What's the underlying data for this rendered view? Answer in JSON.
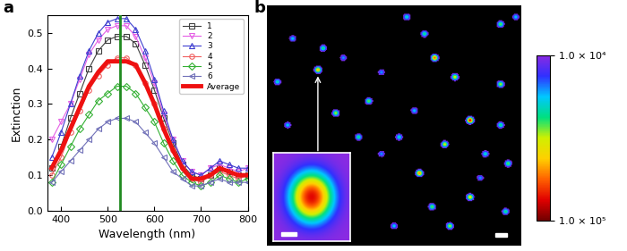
{
  "chart_data": [
    {
      "type": "line",
      "panel_label": "a",
      "x_label": "Wavelength (nm)",
      "y_label": "Extinction",
      "x": [
        380,
        400,
        420,
        440,
        460,
        480,
        500,
        520,
        540,
        560,
        580,
        600,
        620,
        640,
        660,
        680,
        700,
        720,
        740,
        760,
        780,
        800
      ],
      "series": [
        {
          "name": "1",
          "color": "#404040",
          "marker": "square",
          "values": [
            0.12,
            0.18,
            0.26,
            0.33,
            0.4,
            0.45,
            0.48,
            0.49,
            0.49,
            0.47,
            0.41,
            0.34,
            0.26,
            0.19,
            0.13,
            0.1,
            0.09,
            0.1,
            0.12,
            0.11,
            0.1,
            0.1
          ]
        },
        {
          "name": "2",
          "color": "#e55fe5",
          "marker": "triangle_down",
          "values": [
            0.2,
            0.25,
            0.3,
            0.37,
            0.44,
            0.48,
            0.51,
            0.52,
            0.52,
            0.49,
            0.43,
            0.36,
            0.27,
            0.2,
            0.14,
            0.11,
            0.1,
            0.12,
            0.13,
            0.12,
            0.11,
            0.12
          ]
        },
        {
          "name": "3",
          "color": "#3f3fd0",
          "marker": "triangle_up",
          "values": [
            0.15,
            0.22,
            0.3,
            0.38,
            0.45,
            0.5,
            0.53,
            0.54,
            0.54,
            0.51,
            0.45,
            0.37,
            0.28,
            0.2,
            0.14,
            0.11,
            0.1,
            0.12,
            0.14,
            0.13,
            0.12,
            0.12
          ]
        },
        {
          "name": "4",
          "color": "#f06060",
          "marker": "circle",
          "values": [
            0.1,
            0.15,
            0.22,
            0.28,
            0.34,
            0.38,
            0.41,
            0.43,
            0.43,
            0.41,
            0.36,
            0.3,
            0.23,
            0.17,
            0.12,
            0.09,
            0.08,
            0.1,
            0.11,
            0.1,
            0.09,
            0.1
          ]
        },
        {
          "name": "5",
          "color": "#33b033",
          "marker": "diamond",
          "values": [
            0.08,
            0.13,
            0.18,
            0.23,
            0.27,
            0.31,
            0.33,
            0.35,
            0.35,
            0.33,
            0.29,
            0.25,
            0.19,
            0.14,
            0.1,
            0.08,
            0.07,
            0.08,
            0.1,
            0.09,
            0.08,
            0.09
          ]
        },
        {
          "name": "6",
          "color": "#7070b8",
          "marker": "triangle_left",
          "values": [
            0.08,
            0.11,
            0.14,
            0.17,
            0.2,
            0.23,
            0.25,
            0.26,
            0.26,
            0.25,
            0.22,
            0.19,
            0.15,
            0.11,
            0.09,
            0.07,
            0.07,
            0.08,
            0.09,
            0.08,
            0.08,
            0.08
          ]
        },
        {
          "name": "Average",
          "color": "#ee1111",
          "line_style": "solid",
          "values": [
            0.12,
            0.17,
            0.23,
            0.29,
            0.35,
            0.39,
            0.42,
            0.42,
            0.42,
            0.41,
            0.36,
            0.3,
            0.23,
            0.17,
            0.12,
            0.09,
            0.09,
            0.1,
            0.12,
            0.11,
            0.1,
            0.1
          ]
        }
      ],
      "vertical_line": {
        "x": 527,
        "color": "#1f8a1f"
      },
      "xlim": [
        370,
        800
      ],
      "xticks": [
        400,
        500,
        600,
        700,
        800
      ],
      "ylim": [
        0.0,
        0.55
      ],
      "yticks": [
        0.0,
        0.1,
        0.2,
        0.3,
        0.4,
        0.5
      ],
      "legend": "upper right"
    },
    {
      "type": "image",
      "panel_label": "b",
      "tick_labels": false,
      "xlim": [
        0,
        100
      ],
      "ylim": [
        0,
        100
      ],
      "spots": [
        {
          "x": 55,
          "y": 5,
          "intensity": 40000
        },
        {
          "x": 92,
          "y": 8,
          "intensity": 50000
        },
        {
          "x": 98,
          "y": 5,
          "intensity": 35000
        },
        {
          "x": 62,
          "y": 12,
          "intensity": 45000
        },
        {
          "x": 66,
          "y": 22,
          "intensity": 80000
        },
        {
          "x": 45,
          "y": 28,
          "intensity": 30000
        },
        {
          "x": 74,
          "y": 30,
          "intensity": 60000
        },
        {
          "x": 92,
          "y": 33,
          "intensity": 55000
        },
        {
          "x": 10,
          "y": 14,
          "intensity": 35000
        },
        {
          "x": 22,
          "y": 18,
          "intensity": 45000
        },
        {
          "x": 30,
          "y": 22,
          "intensity": 30000
        },
        {
          "x": 20,
          "y": 27,
          "intensity": 70000
        },
        {
          "x": 4,
          "y": 32,
          "intensity": 40000
        },
        {
          "x": 40,
          "y": 40,
          "intensity": 50000
        },
        {
          "x": 58,
          "y": 44,
          "intensity": 35000
        },
        {
          "x": 80,
          "y": 48,
          "intensity": 90000
        },
        {
          "x": 92,
          "y": 50,
          "intensity": 45000
        },
        {
          "x": 70,
          "y": 58,
          "intensity": 60000
        },
        {
          "x": 86,
          "y": 62,
          "intensity": 40000
        },
        {
          "x": 95,
          "y": 66,
          "intensity": 50000
        },
        {
          "x": 60,
          "y": 70,
          "intensity": 75000
        },
        {
          "x": 45,
          "y": 62,
          "intensity": 30000
        },
        {
          "x": 8,
          "y": 50,
          "intensity": 35000
        },
        {
          "x": 27,
          "y": 45,
          "intensity": 55000
        },
        {
          "x": 52,
          "y": 55,
          "intensity": 40000
        },
        {
          "x": 65,
          "y": 84,
          "intensity": 50000
        },
        {
          "x": 80,
          "y": 80,
          "intensity": 65000
        },
        {
          "x": 94,
          "y": 86,
          "intensity": 45000
        },
        {
          "x": 50,
          "y": 92,
          "intensity": 35000
        },
        {
          "x": 72,
          "y": 92,
          "intensity": 55000
        },
        {
          "x": 84,
          "y": 72,
          "intensity": 30000
        },
        {
          "x": 36,
          "y": 55,
          "intensity": 45000
        }
      ],
      "inset_spot": 11,
      "colorbar": {
        "range": [
          10000,
          100000
        ],
        "ticks": [
          {
            "value": 10000,
            "label": "1.0 × 10⁴"
          },
          {
            "value": 100000,
            "label": "1.0 × 10⁵"
          }
        ]
      }
    }
  ]
}
